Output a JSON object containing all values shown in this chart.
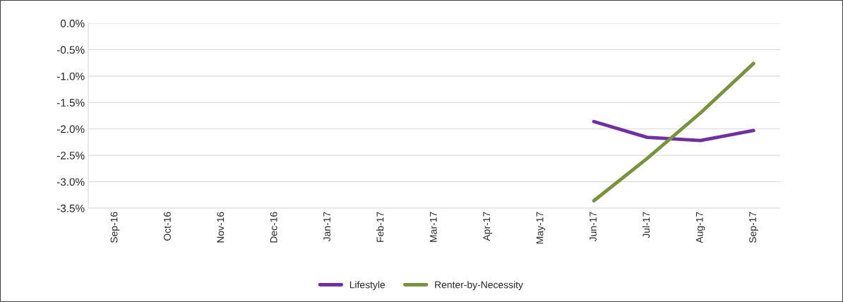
{
  "chart_data": {
    "type": "line",
    "categories": [
      "Sep-16",
      "Oct-16",
      "Nov-16",
      "Dec-16",
      "Jan-17",
      "Feb-17",
      "Mar-17",
      "Apr-17",
      "May-17",
      "Jun-17",
      "Jul-17",
      "Aug-17",
      "Sep-17"
    ],
    "series": [
      {
        "name": "Lifestyle",
        "color": "#7030a0",
        "values": [
          null,
          null,
          null,
          null,
          null,
          null,
          null,
          null,
          null,
          -1.86,
          -2.16,
          -2.22,
          -2.03
        ]
      },
      {
        "name": "Renter-by-Necessity",
        "color": "#77933c",
        "values": [
          null,
          null,
          null,
          null,
          null,
          null,
          null,
          null,
          null,
          -3.36,
          -2.56,
          -1.7,
          -0.76
        ]
      }
    ],
    "ylim": [
      -3.5,
      0
    ],
    "yticks": [
      {
        "value": -3.5,
        "label": "-3.5%"
      },
      {
        "value": -3.0,
        "label": "-3.0%"
      },
      {
        "value": -2.5,
        "label": "-2.5%"
      },
      {
        "value": -2.0,
        "label": "-2.0%"
      },
      {
        "value": -1.5,
        "label": "-1.5%"
      },
      {
        "value": -1.0,
        "label": "-1.0%"
      },
      {
        "value": -0.5,
        "label": "-0.5%"
      },
      {
        "value": 0,
        "label": "0.0%"
      }
    ],
    "grid": "y",
    "legend": "bottom",
    "marker": "none",
    "line_style": "solid"
  }
}
